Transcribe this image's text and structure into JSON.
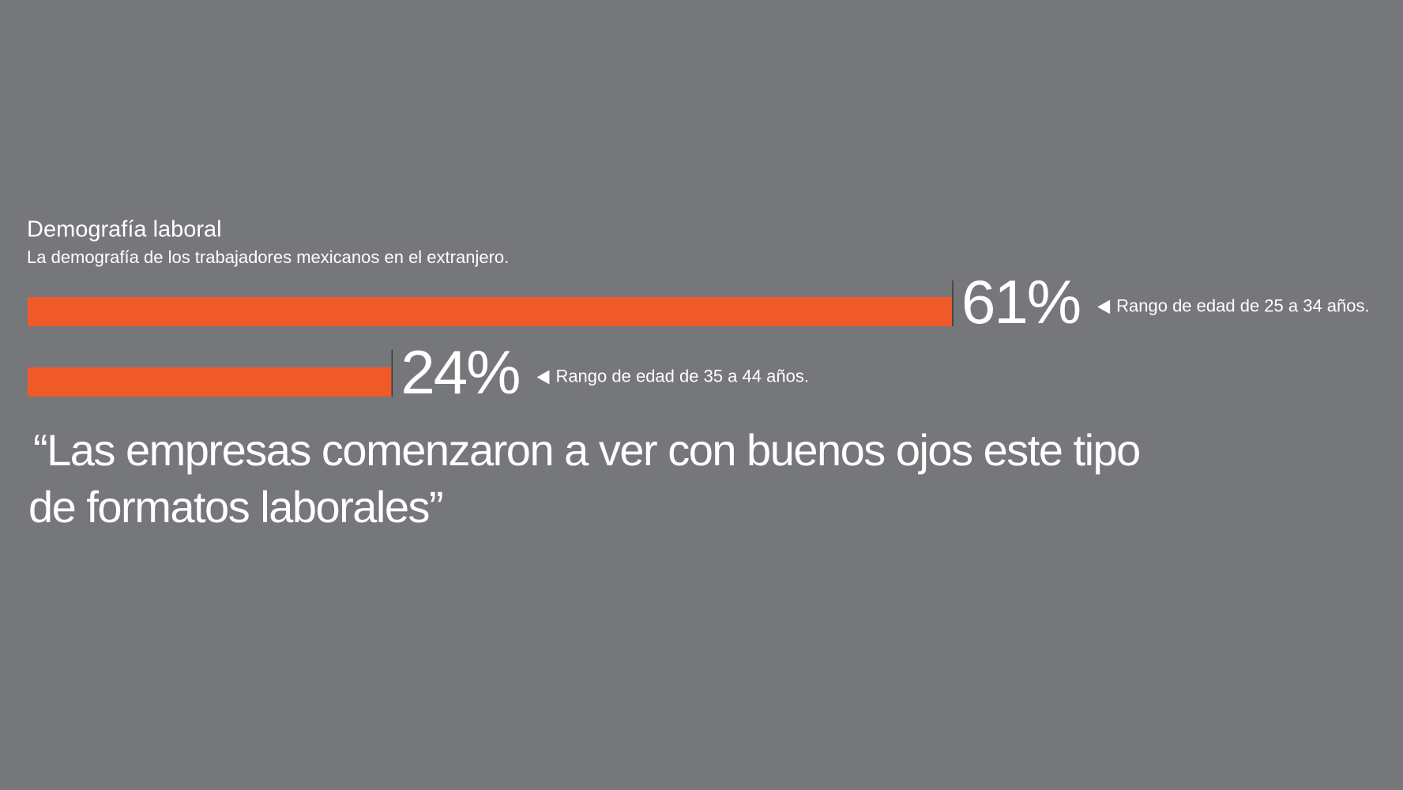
{
  "chart_data": {
    "type": "bar",
    "title": "Demografía laboral",
    "subtitle": "La demografía de los trabajadores mexicanos en el extranjero.",
    "categories": [
      "Rango de edad de 25 a 34 años.",
      "Rango de edad de 35 a 44 años."
    ],
    "values": [
      61,
      24
    ],
    "value_labels": [
      "61%",
      "24%"
    ],
    "color": "#f05a28",
    "quote": [
      "“Las empresas comenzaron a ver con buenos ojos este tipo",
      "de formatos laborales”"
    ]
  }
}
